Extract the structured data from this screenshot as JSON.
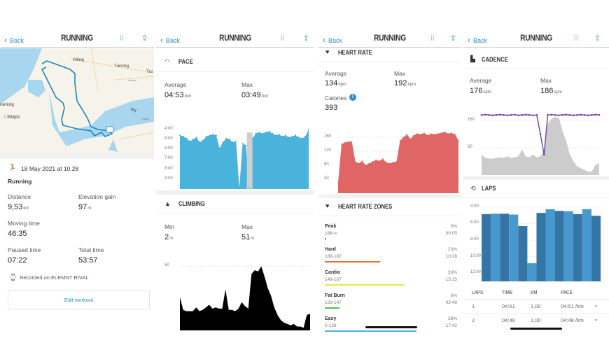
{
  "app": {
    "back_label": "Back",
    "title": "RUNNING",
    "icons": [
      "chevron-left-icon",
      "tune-icon",
      "share-icon"
    ]
  },
  "colors": {
    "accent": "#2a8fc4",
    "pace": "#4ab3dc",
    "pace_dark": "#3a9cc4",
    "heart": "#e06666",
    "heart_dark": "#d45858",
    "climb": "#000000",
    "cadence_dots": "#6a3fa0",
    "cadence_area": "#cccccc",
    "lap_dark": "#3575a5",
    "lap_light": "#4798cf"
  },
  "summary": {
    "map": {
      "labels": {
        "alling": "Alling",
        "torring": "Tørring",
        "tul": "Tul",
        "knudso": "Knudsø",
        "frankrig": "rankrig",
        "ry": "Ry",
        "lasal": "Lasal",
        "maps": "Maps"
      }
    },
    "date": "18 May 2021 at 10.28",
    "activity": "Running",
    "distance": {
      "label": "Distance",
      "value": "9,53",
      "unit": "km"
    },
    "elevation": {
      "label": "Elevation gain",
      "value": "97",
      "unit": "m"
    },
    "moving": {
      "label": "Moving time",
      "value": "46:35"
    },
    "paused": {
      "label": "Paused time",
      "value": "07:22"
    },
    "total": {
      "label": "Total time",
      "value": "53:57"
    },
    "recorded": "Recorded on ELEMNT RIVAL",
    "edit_button": "Edit workout"
  },
  "pace": {
    "title": "PACE",
    "avg_label": "Average",
    "avg": "04:53",
    "avg_unit": "/km",
    "max_label": "Max",
    "max": "03:49",
    "max_unit": "/km"
  },
  "climbing": {
    "title": "CLIMBING",
    "min_label": "Min",
    "min": "2",
    "min_unit": "m",
    "max_label": "Max",
    "max": "51",
    "max_unit": "m"
  },
  "heart": {
    "title": "HEART RATE",
    "avg_label": "Average",
    "avg": "134",
    "avg_unit": "bpm",
    "max_label": "Max",
    "max": "192",
    "max_unit": "bpm",
    "cal_label": "Calories",
    "calories": "393"
  },
  "zones": {
    "title": "HEART RATE ZONES",
    "items": [
      {
        "name": "Peak",
        "range": "188-∞",
        "pct": "0%",
        "time": "00:05",
        "value": 0.5,
        "color": "#d62b2b"
      },
      {
        "name": "Hard",
        "range": "168-187",
        "pct": "23%",
        "time": "10:28",
        "value": 23,
        "color": "#e8722c"
      },
      {
        "name": "Cardio",
        "range": "148-167",
        "pct": "33%",
        "time": "15:15",
        "value": 33,
        "color": "#f1e44a"
      },
      {
        "name": "Fat Burn",
        "range": "129-147",
        "pct": "6%",
        "time": "02:49",
        "value": 6,
        "color": "#4cc24c"
      },
      {
        "name": "Easy",
        "range": "0-128",
        "pct": "38%",
        "time": "17:42",
        "value": 38,
        "color": "#4ab3dc"
      }
    ]
  },
  "cadence": {
    "title": "CADENCE",
    "avg_label": "Average",
    "avg": "176",
    "avg_unit": "spm",
    "max_label": "Max",
    "max": "186",
    "max_unit": "spm"
  },
  "laps": {
    "title": "LAPS",
    "headers": [
      "LAPS",
      "TIME",
      "KM",
      "PACE"
    ],
    "rows": [
      {
        "lap": "1",
        "time": "04:51",
        "km": "1,00",
        "pace": "04:51 /km"
      },
      {
        "lap": "2",
        "time": "04:48",
        "km": "1,00",
        "pace": "04:48 /km"
      }
    ]
  },
  "chart_data": [
    {
      "type": "area",
      "name": "pace",
      "ylabel": "",
      "yticks": [
        "4:00",
        "5:00",
        "6:00",
        "7:00",
        "8:00",
        "9:00"
      ],
      "ytick_values": [
        4,
        5,
        6,
        7,
        8,
        9
      ],
      "ylim": [
        3.3,
        10
      ],
      "inverted": true,
      "values": [
        4.6,
        4.7,
        4.9,
        5.2,
        5.0,
        4.8,
        5.3,
        5.1,
        4.7,
        4.6,
        4.5,
        4.6,
        5.9,
        5.3,
        4.9,
        5.0,
        5.3,
        5.2,
        9.9,
        5.4,
        5.6,
        9.9,
        4.9,
        4.4,
        4.3,
        4.4,
        4.3,
        4.2,
        4.4,
        4.6,
        4.5,
        4.7,
        4.6,
        4.8,
        4.7,
        4.6,
        4.8,
        4.9,
        4.7,
        4.0
      ]
    },
    {
      "type": "area",
      "name": "climbing",
      "yticks": [
        "50"
      ],
      "ytick_values": [
        50
      ],
      "ylim": [
        0,
        53
      ],
      "values": [
        26,
        16,
        15,
        15,
        15,
        18,
        15,
        16,
        18,
        20,
        17,
        18,
        17,
        17,
        32,
        16,
        16,
        15,
        17,
        22,
        19,
        17,
        44,
        47,
        46,
        50,
        42,
        33,
        27,
        18,
        12,
        8,
        6,
        5,
        4,
        5,
        3,
        3,
        2,
        12,
        13
      ]
    },
    {
      "type": "area",
      "name": "heart_rate",
      "yticks": [
        "40",
        "80",
        "120",
        "160"
      ],
      "ytick_values": [
        40,
        80,
        120,
        160
      ],
      "ylim": [
        0,
        192
      ],
      "values": [
        30,
        140,
        145,
        147,
        147,
        90,
        85,
        92,
        80,
        85,
        90,
        95,
        92,
        98,
        88,
        85,
        88,
        90,
        150,
        160,
        168,
        155,
        165,
        170,
        168,
        172,
        165,
        170,
        168,
        170,
        172,
        175,
        170,
        172,
        168,
        150
      ]
    },
    {
      "type": "scatter",
      "name": "cadence",
      "yticks": [
        "80",
        "160"
      ],
      "ytick_values": [
        80,
        160
      ],
      "ylim": [
        0,
        195
      ],
      "values": [
        176,
        177,
        176,
        175,
        176,
        177,
        176,
        175,
        176,
        177,
        175,
        176,
        177,
        176,
        175,
        176,
        120,
        60,
        176,
        177,
        176,
        175,
        176,
        177,
        176,
        175,
        176,
        177,
        176,
        175,
        176,
        177,
        176
      ],
      "background_values": [
        60,
        50,
        48,
        48,
        50,
        52,
        50,
        55,
        50,
        52,
        55,
        75,
        55,
        52,
        60,
        52,
        55,
        70,
        150,
        165,
        170,
        168,
        130,
        100,
        60,
        40,
        25,
        20,
        15,
        10,
        10,
        30,
        35
      ]
    },
    {
      "type": "bar",
      "name": "laps",
      "yticks": [
        "4:00",
        "6:00",
        "8:00",
        "10:00",
        "12:00"
      ],
      "ytick_values": [
        4,
        6,
        8,
        10,
        12
      ],
      "ylim": [
        3.5,
        13
      ],
      "inverted": true,
      "categories": [
        "1",
        "2",
        "3",
        "4",
        "5",
        "6",
        "7",
        "8",
        "9",
        "10",
        "11",
        "12",
        "13"
      ],
      "values": [
        4.85,
        4.8,
        4.8,
        4.9,
        6.3,
        10.8,
        4.7,
        4.25,
        4.45,
        4.5,
        4.85,
        4.25,
        5.05
      ]
    }
  ]
}
